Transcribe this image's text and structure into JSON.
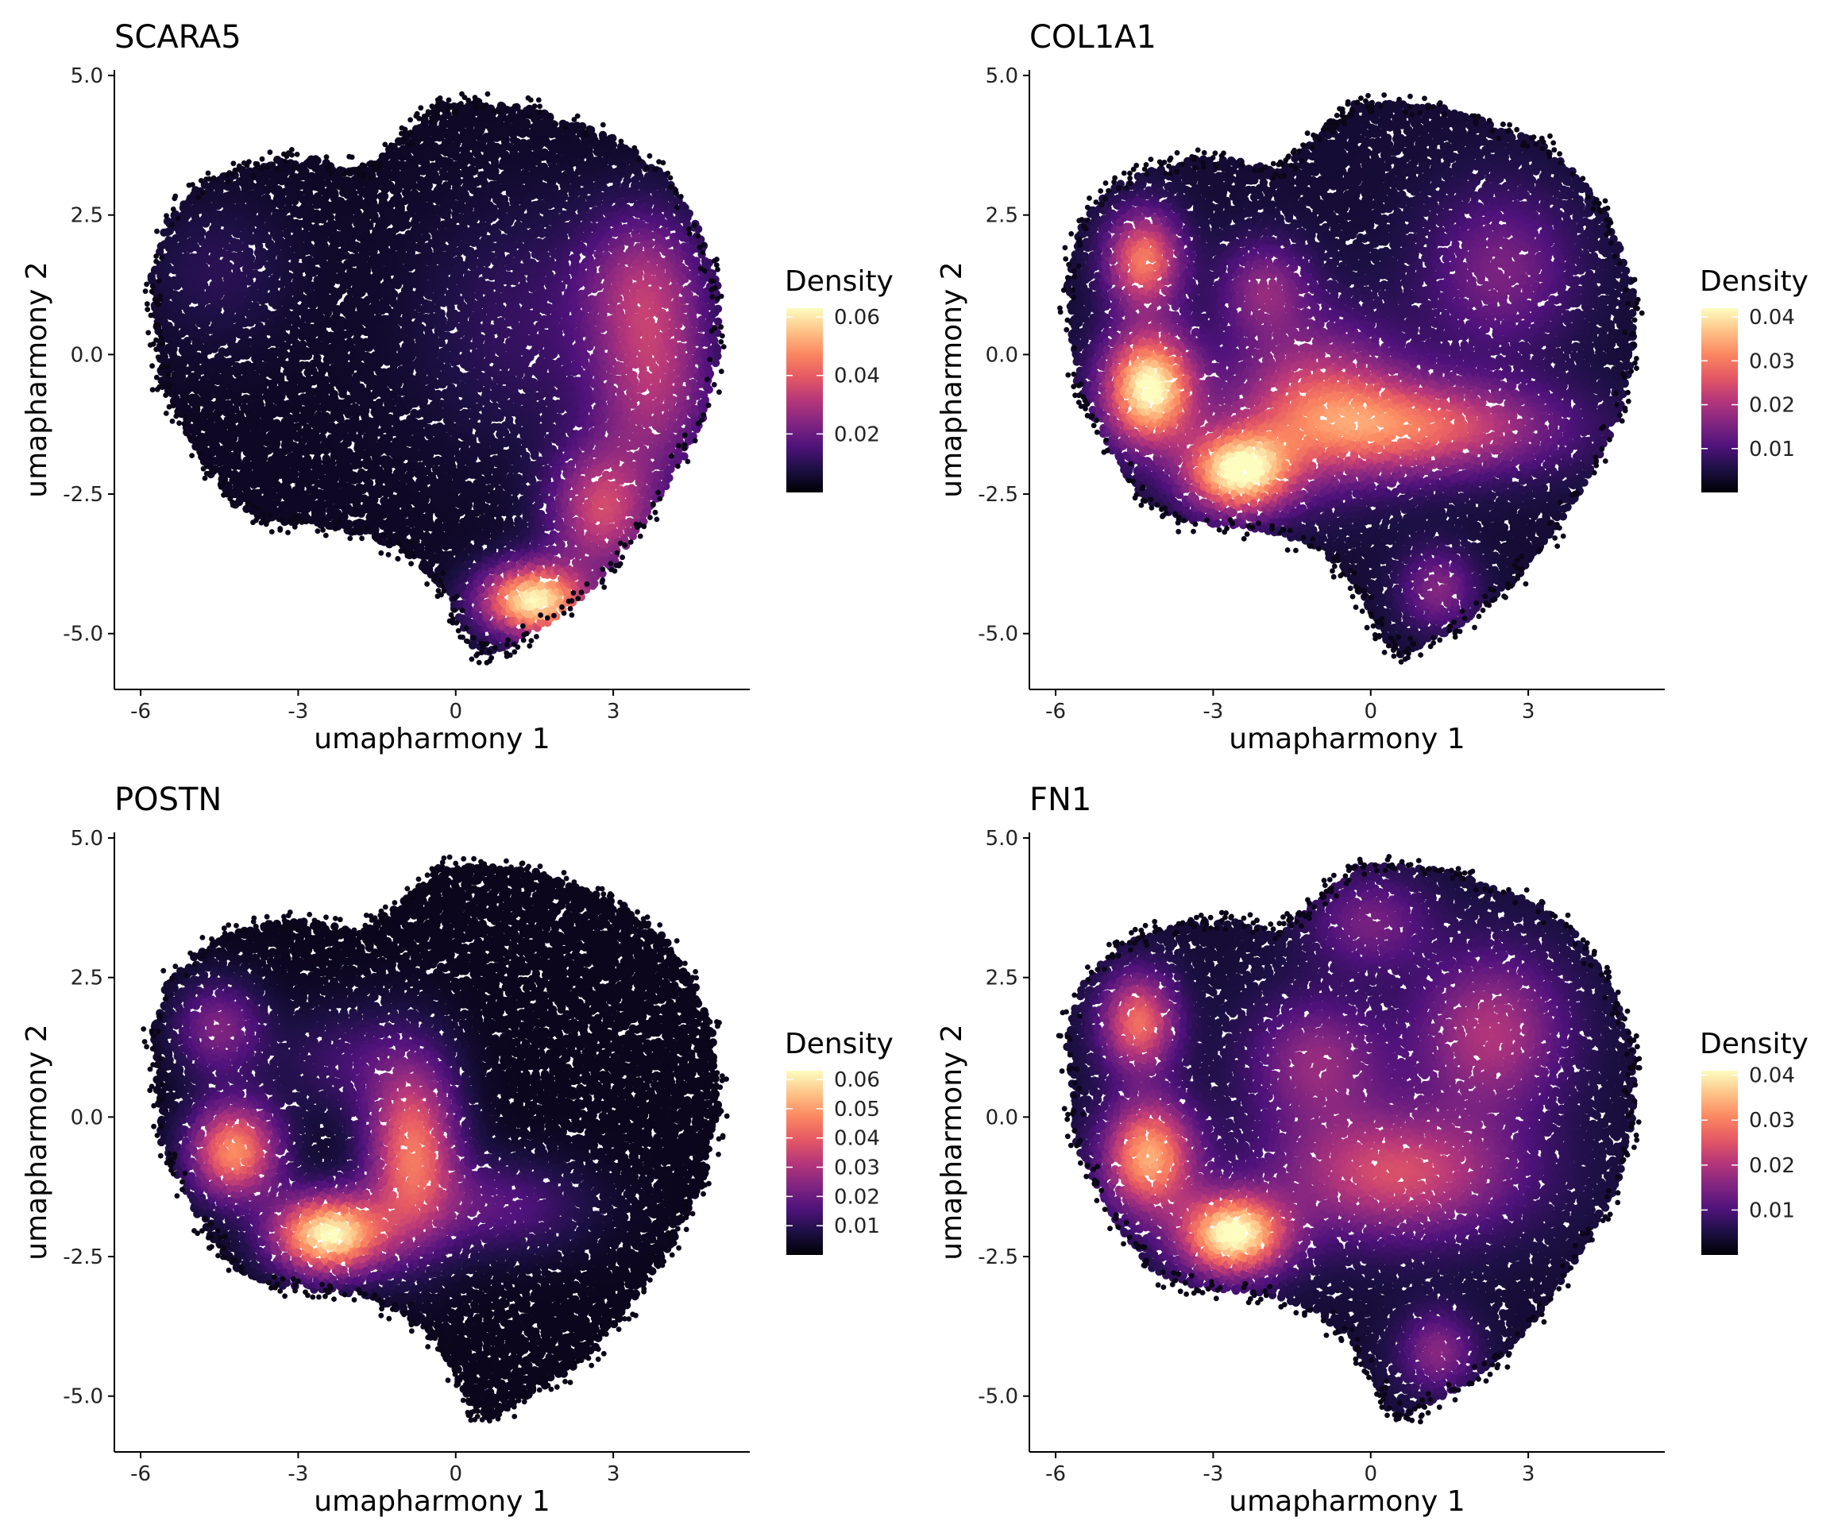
{
  "figure": {
    "background": "#ffffff",
    "colormap": [
      "#000004",
      "#1c1044",
      "#4f127b",
      "#812581",
      "#b5367a",
      "#e55964",
      "#fb8761",
      "#fec287",
      "#fcfdbf"
    ]
  },
  "chart_data": [
    {
      "type": "scatter",
      "title": "SCARA5",
      "xlabel": "umapharmony 1",
      "ylabel": "umapharmony 2",
      "xlim": [
        -6.5,
        5.6
      ],
      "ylim": [
        -6.0,
        5.1
      ],
      "x_ticks": [
        -6,
        -3,
        0,
        3
      ],
      "x_tick_labels": [
        "-6",
        "-3",
        "0",
        "3"
      ],
      "y_ticks": [
        5.0,
        2.5,
        0.0,
        -2.5,
        -5.0
      ],
      "y_tick_labels": [
        "5.0",
        "2.5",
        "0.0",
        "-2.5",
        "-5.0"
      ],
      "legend": {
        "title": "Density",
        "position": "right",
        "min": 0.0,
        "max": 0.063,
        "ticks": [
          0.02,
          0.04,
          0.06
        ],
        "tick_labels": [
          "0.02",
          "0.04",
          "0.06"
        ]
      },
      "background_density": 0.004,
      "hotspots": [
        {
          "x": 1.5,
          "y": -4.4,
          "sx": 0.7,
          "sy": 0.45,
          "v": 0.058
        },
        {
          "x": 2.8,
          "y": -2.8,
          "sx": 0.7,
          "sy": 0.8,
          "v": 0.03
        },
        {
          "x": 3.8,
          "y": -0.5,
          "sx": 0.8,
          "sy": 1.2,
          "v": 0.024
        },
        {
          "x": 3.6,
          "y": 1.4,
          "sx": 0.8,
          "sy": 0.9,
          "v": 0.018
        },
        {
          "x": -4.5,
          "y": 1.5,
          "sx": 1.0,
          "sy": 0.9,
          "v": 0.006
        },
        {
          "x": 1.5,
          "y": 0.5,
          "sx": 1.5,
          "sy": 1.5,
          "v": 0.008
        }
      ]
    },
    {
      "type": "scatter",
      "title": "COL1A1",
      "xlabel": "umapharmony 1",
      "ylabel": "umapharmony 2",
      "xlim": [
        -6.5,
        5.6
      ],
      "ylim": [
        -6.0,
        5.1
      ],
      "x_ticks": [
        -6,
        -3,
        0,
        3
      ],
      "x_tick_labels": [
        "-6",
        "-3",
        "0",
        "3"
      ],
      "y_ticks": [
        5.0,
        2.5,
        0.0,
        -2.5,
        -5.0
      ],
      "y_tick_labels": [
        "5.0",
        "2.5",
        "0.0",
        "-2.5",
        "-5.0"
      ],
      "legend": {
        "title": "Density",
        "position": "right",
        "min": 0.0,
        "max": 0.042,
        "ticks": [
          0.01,
          0.02,
          0.03,
          0.04
        ],
        "tick_labels": [
          "0.01",
          "0.02",
          "0.03",
          "0.04"
        ]
      },
      "background_density": 0.004,
      "hotspots": [
        {
          "x": -4.2,
          "y": -0.6,
          "sx": 0.6,
          "sy": 0.7,
          "v": 0.039
        },
        {
          "x": -2.5,
          "y": -2.1,
          "sx": 0.7,
          "sy": 0.5,
          "v": 0.037
        },
        {
          "x": -4.3,
          "y": 1.7,
          "sx": 0.5,
          "sy": 0.6,
          "v": 0.026
        },
        {
          "x": 1.0,
          "y": -1.3,
          "sx": 1.8,
          "sy": 0.6,
          "v": 0.022
        },
        {
          "x": -1.0,
          "y": -0.8,
          "sx": 1.2,
          "sy": 1.0,
          "v": 0.018
        },
        {
          "x": 1.3,
          "y": -4.2,
          "sx": 0.5,
          "sy": 0.5,
          "v": 0.012
        },
        {
          "x": 2.5,
          "y": 1.5,
          "sx": 1.0,
          "sy": 1.0,
          "v": 0.011
        },
        {
          "x": -2.0,
          "y": 1.2,
          "sx": 0.6,
          "sy": 0.6,
          "v": 0.012
        }
      ]
    },
    {
      "type": "scatter",
      "title": "POSTN",
      "xlabel": "umapharmony 1",
      "ylabel": "umapharmony 2",
      "xlim": [
        -6.5,
        5.6
      ],
      "ylim": [
        -6.0,
        5.1
      ],
      "x_ticks": [
        -6,
        -3,
        0,
        3
      ],
      "x_tick_labels": [
        "-6",
        "-3",
        "0",
        "3"
      ],
      "y_ticks": [
        5.0,
        2.5,
        0.0,
        -2.5,
        -5.0
      ],
      "y_tick_labels": [
        "5.0",
        "2.5",
        "0.0",
        "-2.5",
        "-5.0"
      ],
      "legend": {
        "title": "Density",
        "position": "right",
        "min": 0.0,
        "max": 0.063,
        "ticks": [
          0.01,
          0.02,
          0.03,
          0.04,
          0.05,
          0.06
        ],
        "tick_labels": [
          "0.01",
          "0.02",
          "0.03",
          "0.04",
          "0.05",
          "0.06"
        ]
      },
      "background_density": 0.003,
      "hotspots": [
        {
          "x": -2.4,
          "y": -2.1,
          "sx": 0.75,
          "sy": 0.5,
          "v": 0.06
        },
        {
          "x": -4.2,
          "y": -0.6,
          "sx": 0.6,
          "sy": 0.6,
          "v": 0.045
        },
        {
          "x": -0.8,
          "y": -0.6,
          "sx": 0.6,
          "sy": 1.1,
          "v": 0.04
        },
        {
          "x": -4.5,
          "y": 1.6,
          "sx": 0.6,
          "sy": 0.6,
          "v": 0.02
        },
        {
          "x": 0.8,
          "y": -1.6,
          "sx": 1.2,
          "sy": 0.6,
          "v": 0.014
        },
        {
          "x": -2.0,
          "y": 1.0,
          "sx": 1.0,
          "sy": 0.7,
          "v": 0.01
        }
      ]
    },
    {
      "type": "scatter",
      "title": "FN1",
      "xlabel": "umapharmony 1",
      "ylabel": "umapharmony 2",
      "xlim": [
        -6.5,
        5.6
      ],
      "ylim": [
        -6.0,
        5.1
      ],
      "x_ticks": [
        -6,
        -3,
        0,
        3
      ],
      "x_tick_labels": [
        "-6",
        "-3",
        "0",
        "3"
      ],
      "y_ticks": [
        5.0,
        2.5,
        0.0,
        -2.5,
        -5.0
      ],
      "y_tick_labels": [
        "5.0",
        "2.5",
        "0.0",
        "-2.5",
        "-5.0"
      ],
      "legend": {
        "title": "Density",
        "position": "right",
        "min": 0.0,
        "max": 0.041,
        "ticks": [
          0.01,
          0.02,
          0.03,
          0.04
        ],
        "tick_labels": [
          "0.01",
          "0.02",
          "0.03",
          "0.04"
        ]
      },
      "background_density": 0.004,
      "hotspots": [
        {
          "x": -2.6,
          "y": -2.1,
          "sx": 0.7,
          "sy": 0.5,
          "v": 0.038
        },
        {
          "x": -4.2,
          "y": -0.7,
          "sx": 0.6,
          "sy": 0.7,
          "v": 0.03
        },
        {
          "x": -4.4,
          "y": 1.7,
          "sx": 0.5,
          "sy": 0.6,
          "v": 0.024
        },
        {
          "x": 0.5,
          "y": -1.0,
          "sx": 1.6,
          "sy": 0.8,
          "v": 0.02
        },
        {
          "x": 2.3,
          "y": 1.5,
          "sx": 1.0,
          "sy": 1.0,
          "v": 0.016
        },
        {
          "x": -1.0,
          "y": 1.0,
          "sx": 0.9,
          "sy": 0.8,
          "v": 0.013
        },
        {
          "x": 1.3,
          "y": -4.2,
          "sx": 0.5,
          "sy": 0.5,
          "v": 0.012
        },
        {
          "x": 0.0,
          "y": 3.5,
          "sx": 0.8,
          "sy": 0.6,
          "v": 0.01
        }
      ]
    }
  ]
}
